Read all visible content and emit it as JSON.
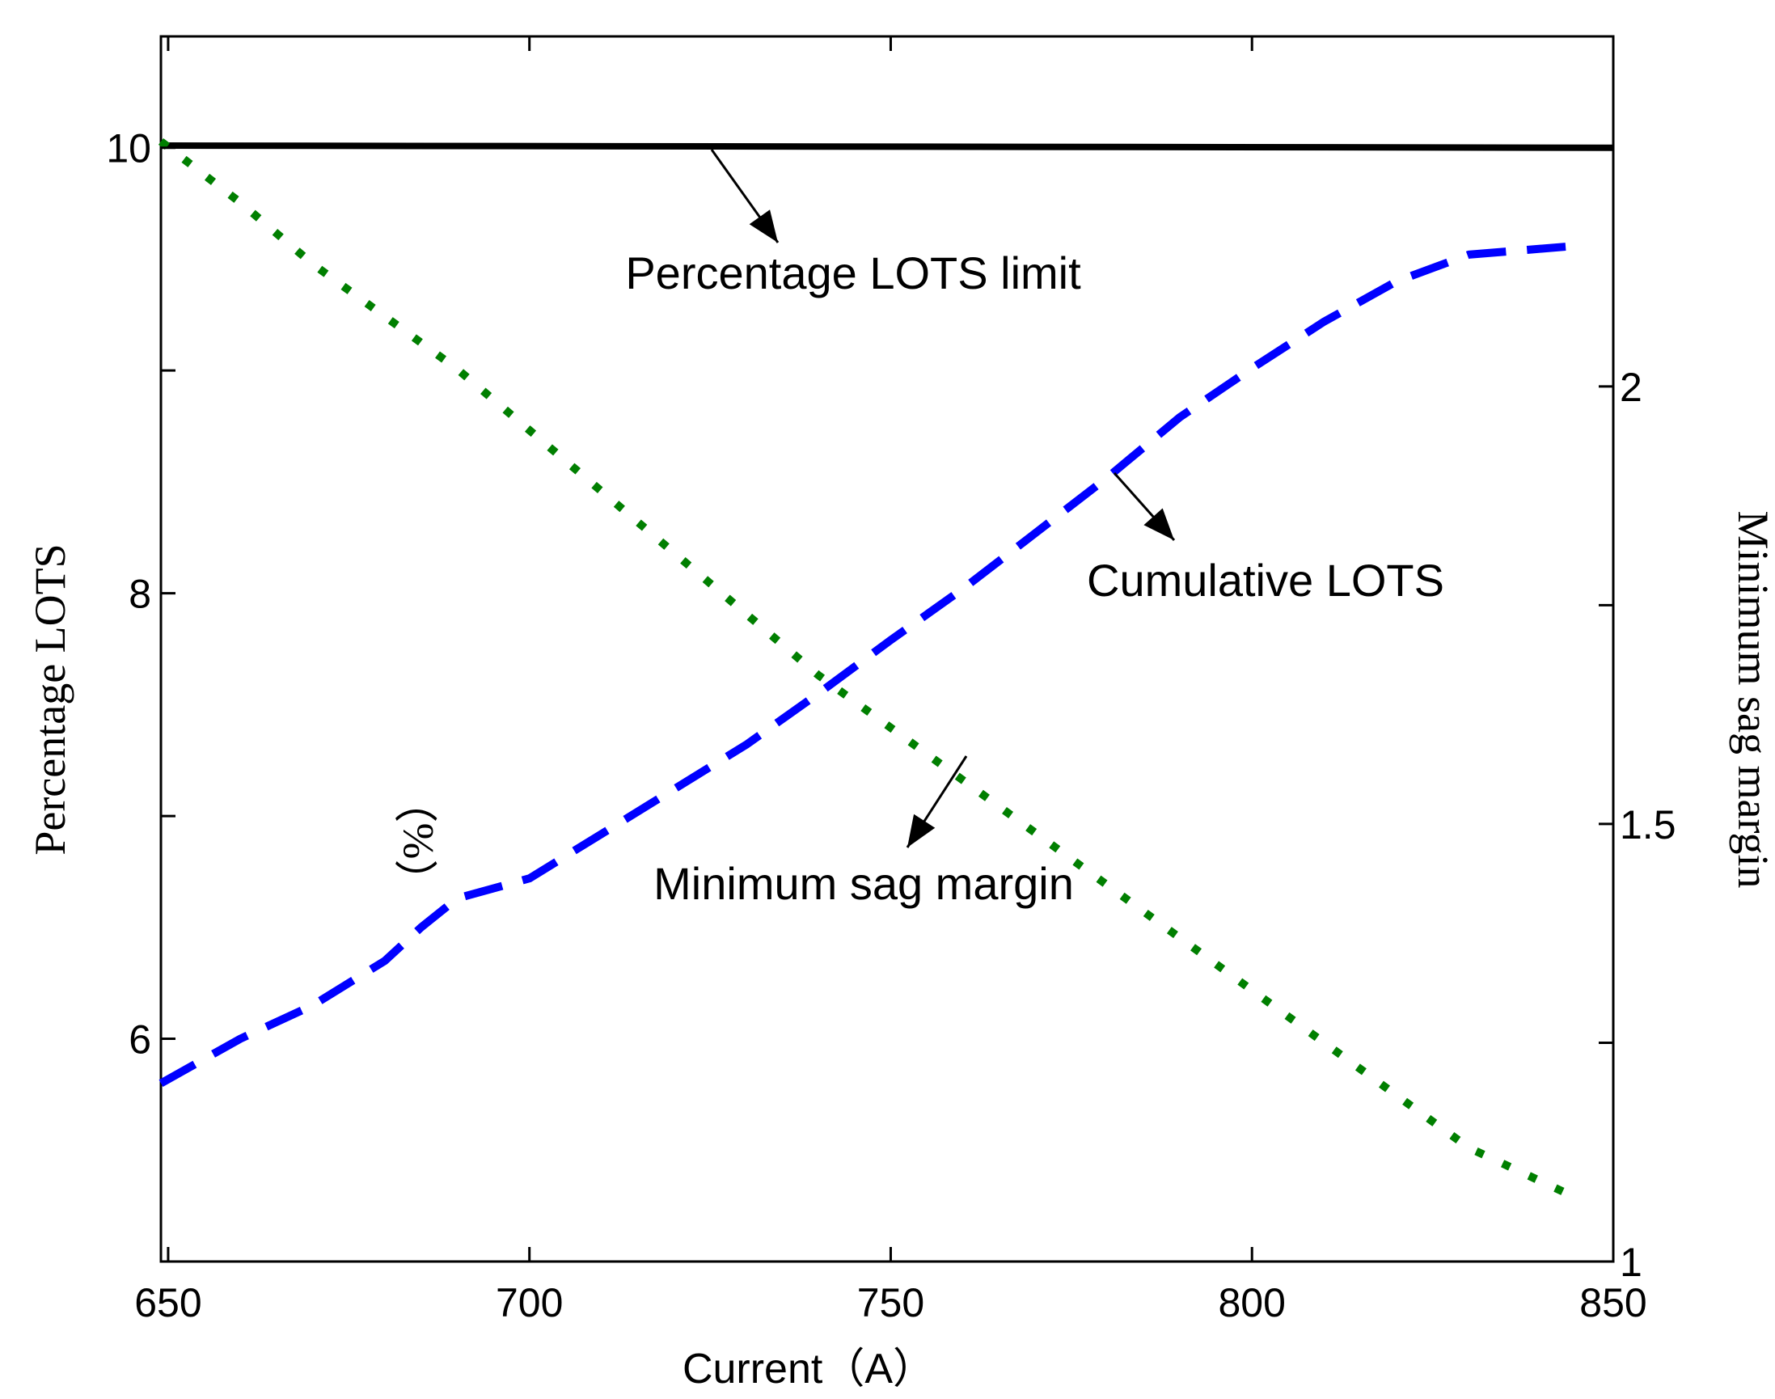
{
  "chart_data": {
    "type": "line",
    "title": "",
    "xlabel": "Current（A）",
    "ylabel_left": "Percentage LOTS",
    "ylabel_left_unit": "（%）",
    "ylabel_right": "Minimum sag margin",
    "xlim": [
      649,
      850
    ],
    "ylim_left": [
      5,
      10.5
    ],
    "ylim_right": [
      1,
      2.4
    ],
    "x_ticks": [
      650,
      700,
      750,
      800,
      850
    ],
    "y_ticks_left": [
      6,
      8,
      10
    ],
    "y_ticks_right": [
      1,
      1.5,
      2
    ],
    "grid": false,
    "series": [
      {
        "name": "Percentage LOTS limit",
        "axis": "left",
        "style": "solid",
        "color": "#000000",
        "x": [
          649,
          850
        ],
        "y": [
          10.01,
          10.0
        ]
      },
      {
        "name": "Cumulative LOTS",
        "axis": "left",
        "style": "dashed",
        "color": "#0000ff",
        "x": [
          649,
          660,
          670,
          680,
          685,
          690,
          700,
          710,
          720,
          730,
          740,
          750,
          760,
          770,
          780,
          790,
          800,
          810,
          820,
          830,
          845
        ],
        "y": [
          5.8,
          6.0,
          6.15,
          6.35,
          6.5,
          6.63,
          6.72,
          6.92,
          7.12,
          7.32,
          7.55,
          7.79,
          8.02,
          8.27,
          8.52,
          8.79,
          9.01,
          9.22,
          9.4,
          9.52,
          9.56
        ]
      },
      {
        "name": "Minimum sag margin",
        "axis": "right",
        "style": "dotted",
        "color": "#007f00",
        "x": [
          649,
          660,
          670,
          680,
          690,
          700,
          710,
          720,
          730,
          740,
          750,
          760,
          770,
          780,
          790,
          800,
          810,
          820,
          830,
          843
        ],
        "y": [
          2.28,
          2.21,
          2.14,
          2.08,
          2.02,
          1.95,
          1.88,
          1.81,
          1.74,
          1.67,
          1.61,
          1.55,
          1.49,
          1.43,
          1.37,
          1.31,
          1.25,
          1.19,
          1.13,
          1.08
        ]
      }
    ],
    "annotations": [
      {
        "text": "Percentage LOTS limit",
        "target_series": "Percentage LOTS limit"
      },
      {
        "text": "Cumulative LOTS",
        "target_series": "Cumulative LOTS"
      },
      {
        "text": "Minimum sag margin",
        "target_series": "Minimum sag margin"
      }
    ]
  }
}
